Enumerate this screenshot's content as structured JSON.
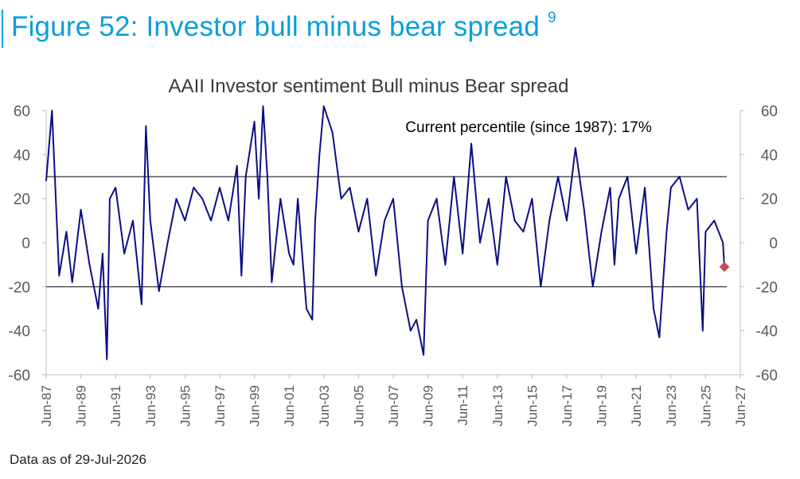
{
  "figure": {
    "title": "Figure 52: Investor bull minus bear spread",
    "footnote_marker": "9",
    "footnote": "Data as of 29-Jul-2026"
  },
  "chart_data": {
    "type": "line",
    "title": "AAII Investor sentiment Bull minus Bear spread",
    "annotation": "Current percentile (since 1987): 17%",
    "xlabel": "",
    "ylabel": "",
    "ylim": [
      -60,
      60
    ],
    "y_ticks": [
      "-60",
      "-40",
      "-20",
      "0",
      "20",
      "40",
      "60"
    ],
    "y_ticks_right": [
      "-60",
      "-40",
      "-20",
      "0",
      "20",
      "40",
      "60"
    ],
    "xlim": [
      "Jun-87",
      "Jun-27"
    ],
    "x_ticks": [
      "Jun-87",
      "Jun-89",
      "Jun-91",
      "Jun-93",
      "Jun-95",
      "Jun-97",
      "Jun-99",
      "Jun-01",
      "Jun-03",
      "Jun-05",
      "Jun-07",
      "Jun-09",
      "Jun-11",
      "Jun-13",
      "Jun-15",
      "Jun-17",
      "Jun-19",
      "Jun-21",
      "Jun-23",
      "Jun-25",
      "Jun-27"
    ],
    "reference_lines": [
      30,
      -20
    ],
    "grid": false,
    "colors": {
      "series": "#0d0d85",
      "marker": "#c0504d",
      "reference": "#000000",
      "axis": "#bfbfbf",
      "tick_text": "#595959"
    },
    "series": [
      {
        "x": [
          "Jun-87",
          "Oct-87",
          "Mar-88",
          "Aug-88",
          "Dec-88",
          "Jun-89",
          "Dec-89",
          "Jun-90",
          "Sep-90",
          "Dec-90",
          "Feb-91",
          "Jun-91",
          "Dec-91",
          "Jun-92",
          "Dec-92",
          "Mar-93",
          "Jun-93",
          "Dec-93",
          "Jun-94",
          "Dec-94",
          "Jun-95",
          "Dec-95",
          "Jun-96",
          "Dec-96",
          "Jun-97",
          "Dec-97",
          "Jun-98",
          "Sep-98",
          "Dec-98",
          "Jun-99",
          "Sep-99",
          "Dec-99",
          "Mar-00",
          "Jun-00",
          "Dec-00",
          "Jun-01",
          "Sep-01",
          "Dec-01",
          "Jun-02",
          "Oct-02",
          "Dec-02",
          "Mar-03",
          "Jun-03",
          "Dec-03",
          "Jun-04",
          "Dec-04",
          "Jun-05",
          "Dec-05",
          "Jun-06",
          "Dec-06",
          "Jun-07",
          "Dec-07",
          "Jun-08",
          "Oct-08",
          "Mar-09",
          "Jun-09",
          "Dec-09",
          "Jun-10",
          "Dec-10",
          "Jun-11",
          "Dec-11",
          "Jun-12",
          "Dec-12",
          "Jun-13",
          "Dec-13",
          "Jun-14",
          "Dec-14",
          "Jun-15",
          "Dec-15",
          "Jun-16",
          "Dec-16",
          "Jun-17",
          "Dec-17",
          "Jun-18",
          "Dec-18",
          "Jun-19",
          "Dec-19",
          "Mar-20",
          "Jun-20",
          "Dec-20",
          "Jun-21",
          "Dec-21",
          "Jun-22",
          "Oct-22",
          "Mar-23",
          "Jun-23",
          "Dec-23",
          "Jun-24",
          "Dec-24",
          "Apr-25",
          "Jun-25",
          "Dec-25",
          "Jun-26",
          "Jul-26"
        ],
        "values": [
          28,
          60,
          -15,
          5,
          -18,
          15,
          -10,
          -30,
          -5,
          -53,
          20,
          25,
          -5,
          10,
          -28,
          53,
          10,
          -22,
          0,
          20,
          10,
          25,
          20,
          10,
          25,
          10,
          35,
          -15,
          30,
          55,
          20,
          62,
          30,
          -18,
          20,
          -5,
          -10,
          20,
          -30,
          -35,
          10,
          40,
          62,
          50,
          20,
          25,
          5,
          20,
          -15,
          10,
          20,
          -20,
          -40,
          -35,
          -51,
          10,
          20,
          -10,
          30,
          -5,
          45,
          0,
          20,
          -10,
          30,
          10,
          5,
          20,
          -20,
          10,
          30,
          10,
          43,
          15,
          -20,
          5,
          25,
          -10,
          20,
          30,
          -5,
          25,
          -30,
          -43,
          5,
          25,
          30,
          15,
          20,
          -40,
          5,
          10,
          0,
          -11
        ]
      }
    ],
    "current_marker": {
      "x": "Jul-26",
      "value": -11
    }
  }
}
